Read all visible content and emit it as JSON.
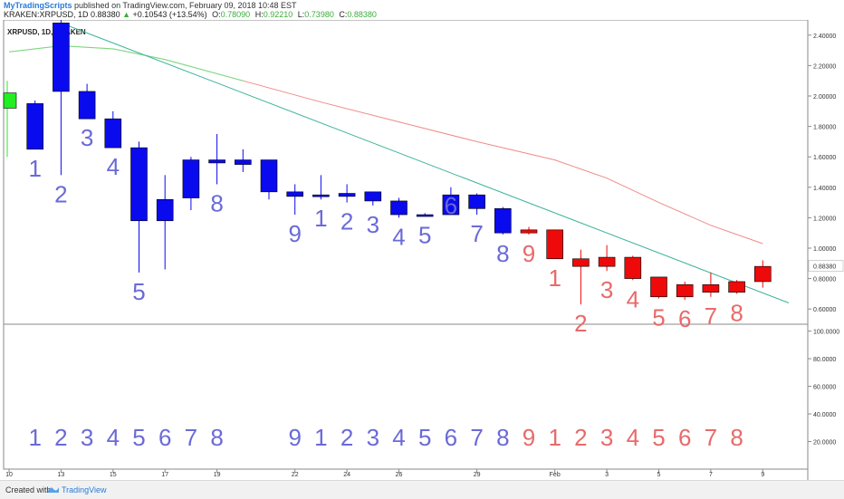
{
  "header": {
    "publisher": "MyTradingScripts",
    "published_text": "published on TradingView.com, February 09, 2018 10:48 EST",
    "symbol_line": "KRAKEN:XRPUSD, 1D",
    "last": "0.88380",
    "change_arrow": "▲",
    "change": "+0.10543 (+13.54%)",
    "o_label": "O:",
    "o_value": "0.78090",
    "h_label": "H:",
    "h_value": "0.92210",
    "l_label": "L:",
    "l_value": "0.73980",
    "c_label": "C:",
    "c_value": "0.88380"
  },
  "footer": {
    "created": "Created with",
    "brand": "TradingView",
    "logo_icon": "tradingview-logo-icon"
  },
  "colors": {
    "bull_setup": "#0a0aee",
    "bear_setup": "#ee0a0a",
    "first_bar": "#22ee22",
    "count_blue": "#6a6ad8",
    "count_red": "#e86a6a",
    "trendline": "#3cb39a",
    "ma_green": "#7ed67e",
    "ma_red": "#f08a8a"
  },
  "chart_data": {
    "type": "candlestick",
    "title": "XRPUSD, 1D, KRAKEN",
    "last_price_label": "0.88380",
    "y_ticks": [
      "2.40000",
      "2.20000",
      "2.00000",
      "1.80000",
      "1.60000",
      "1.40000",
      "1.20000",
      "1.00000",
      "0.88380",
      "0.80000",
      "0.60000"
    ],
    "y_tick_values": [
      2.4,
      2.2,
      2.0,
      1.8,
      1.6,
      1.4,
      1.2,
      1.0,
      0.8838,
      0.8,
      0.6
    ],
    "ylim": [
      0.5,
      2.5
    ],
    "x_ticks": [
      {
        "label": "10",
        "idx": 0
      },
      {
        "label": "13",
        "idx": 2
      },
      {
        "label": "15",
        "idx": 4
      },
      {
        "label": "17",
        "idx": 6
      },
      {
        "label": "19",
        "idx": 8
      },
      {
        "label": "22",
        "idx": 11
      },
      {
        "label": "24",
        "idx": 13
      },
      {
        "label": "26",
        "idx": 15
      },
      {
        "label": "29",
        "idx": 18
      },
      {
        "label": "Feb",
        "idx": 21
      },
      {
        "label": "3",
        "idx": 23
      },
      {
        "label": "5",
        "idx": 25
      },
      {
        "label": "7",
        "idx": 27
      },
      {
        "label": "9",
        "idx": 29
      }
    ],
    "candles": [
      {
        "o": 1.92,
        "h": 2.1,
        "l": 1.6,
        "c": 2.02,
        "color": "green"
      },
      {
        "o": 1.95,
        "h": 1.97,
        "l": 1.65,
        "c": 1.65,
        "color": "blue"
      },
      {
        "o": 2.03,
        "h": 2.52,
        "l": 1.48,
        "c": 2.48,
        "color": "blue"
      },
      {
        "o": 2.03,
        "h": 2.08,
        "l": 1.85,
        "c": 1.85,
        "color": "blue"
      },
      {
        "o": 1.85,
        "h": 1.9,
        "l": 1.66,
        "c": 1.66,
        "color": "blue"
      },
      {
        "o": 1.66,
        "h": 1.7,
        "l": 0.84,
        "c": 1.18,
        "color": "blue"
      },
      {
        "o": 1.18,
        "h": 1.48,
        "l": 0.86,
        "c": 1.32,
        "color": "blue"
      },
      {
        "o": 1.33,
        "h": 1.6,
        "l": 1.25,
        "c": 1.58,
        "color": "blue"
      },
      {
        "o": 1.56,
        "h": 1.75,
        "l": 1.42,
        "c": 1.58,
        "color": "blue"
      },
      {
        "o": 1.55,
        "h": 1.65,
        "l": 1.5,
        "c": 1.58,
        "color": "blue"
      },
      {
        "o": 1.58,
        "h": 1.58,
        "l": 1.32,
        "c": 1.37,
        "color": "blue"
      },
      {
        "o": 1.37,
        "h": 1.42,
        "l": 1.22,
        "c": 1.34,
        "color": "blue"
      },
      {
        "o": 1.35,
        "h": 1.48,
        "l": 1.32,
        "c": 1.35,
        "color": "blue"
      },
      {
        "o": 1.36,
        "h": 1.42,
        "l": 1.3,
        "c": 1.34,
        "color": "blue"
      },
      {
        "o": 1.37,
        "h": 1.37,
        "l": 1.28,
        "c": 1.31,
        "color": "blue"
      },
      {
        "o": 1.31,
        "h": 1.33,
        "l": 1.2,
        "c": 1.22,
        "color": "blue"
      },
      {
        "o": 1.22,
        "h": 1.23,
        "l": 1.21,
        "c": 1.22,
        "color": "blue"
      },
      {
        "o": 1.22,
        "h": 1.4,
        "l": 1.22,
        "c": 1.35,
        "color": "blue"
      },
      {
        "o": 1.35,
        "h": 1.36,
        "l": 1.22,
        "c": 1.26,
        "color": "blue"
      },
      {
        "o": 1.26,
        "h": 1.27,
        "l": 1.09,
        "c": 1.1,
        "color": "blue"
      },
      {
        "o": 1.12,
        "h": 1.14,
        "l": 1.09,
        "c": 1.1,
        "color": "red"
      },
      {
        "o": 1.12,
        "h": 1.12,
        "l": 0.93,
        "c": 0.93,
        "color": "red"
      },
      {
        "o": 0.93,
        "h": 0.99,
        "l": 0.63,
        "c": 0.88,
        "color": "red"
      },
      {
        "o": 0.88,
        "h": 1.02,
        "l": 0.85,
        "c": 0.94,
        "color": "red"
      },
      {
        "o": 0.94,
        "h": 0.95,
        "l": 0.79,
        "c": 0.8,
        "color": "red"
      },
      {
        "o": 0.81,
        "h": 0.81,
        "l": 0.67,
        "c": 0.68,
        "color": "red"
      },
      {
        "o": 0.68,
        "h": 0.78,
        "l": 0.66,
        "c": 0.76,
        "color": "red"
      },
      {
        "o": 0.76,
        "h": 0.84,
        "l": 0.68,
        "c": 0.71,
        "color": "red"
      },
      {
        "o": 0.71,
        "h": 0.79,
        "l": 0.7,
        "c": 0.78,
        "color": "red"
      },
      {
        "o": 0.78,
        "h": 0.92,
        "l": 0.74,
        "c": 0.88,
        "color": "red"
      }
    ],
    "price_counts": [
      {
        "idx": 1,
        "label": "1",
        "side": "below",
        "color": "blue"
      },
      {
        "idx": 2,
        "label": "2",
        "side": "below",
        "color": "blue"
      },
      {
        "idx": 3,
        "label": "3",
        "side": "below",
        "color": "blue"
      },
      {
        "idx": 4,
        "label": "4",
        "side": "below",
        "color": "blue"
      },
      {
        "idx": 5,
        "label": "5",
        "side": "below",
        "color": "blue"
      },
      {
        "idx": 8,
        "label": "8",
        "side": "below",
        "color": "blue"
      },
      {
        "idx": 11,
        "label": "9",
        "side": "below",
        "color": "blue"
      },
      {
        "idx": 12,
        "label": "1",
        "side": "below",
        "color": "blue"
      },
      {
        "idx": 13,
        "label": "2",
        "side": "below",
        "color": "blue"
      },
      {
        "idx": 14,
        "label": "3",
        "side": "below",
        "color": "blue"
      },
      {
        "idx": 15,
        "label": "4",
        "side": "below",
        "color": "blue"
      },
      {
        "idx": 16,
        "label": "5",
        "side": "below",
        "color": "blue"
      },
      {
        "idx": 17,
        "label": "6",
        "side": "on",
        "color": "blue"
      },
      {
        "idx": 18,
        "label": "7",
        "side": "below",
        "color": "blue"
      },
      {
        "idx": 19,
        "label": "8",
        "side": "below",
        "color": "blue"
      },
      {
        "idx": 20,
        "label": "9",
        "side": "below",
        "color": "red"
      },
      {
        "idx": 21,
        "label": "1",
        "side": "below",
        "color": "red"
      },
      {
        "idx": 22,
        "label": "2",
        "side": "below",
        "color": "red"
      },
      {
        "idx": 23,
        "label": "3",
        "side": "below",
        "color": "red"
      },
      {
        "idx": 24,
        "label": "4",
        "side": "below",
        "color": "red"
      },
      {
        "idx": 25,
        "label": "5",
        "side": "below",
        "color": "red"
      },
      {
        "idx": 26,
        "label": "6",
        "side": "below",
        "color": "red"
      },
      {
        "idx": 27,
        "label": "7",
        "side": "below",
        "color": "red"
      },
      {
        "idx": 28,
        "label": "8",
        "side": "below",
        "color": "red"
      }
    ],
    "lower_counts": [
      {
        "idx": 1,
        "label": "1",
        "color": "blue"
      },
      {
        "idx": 2,
        "label": "2",
        "color": "blue"
      },
      {
        "idx": 3,
        "label": "3",
        "color": "blue"
      },
      {
        "idx": 4,
        "label": "4",
        "color": "blue"
      },
      {
        "idx": 5,
        "label": "5",
        "color": "blue"
      },
      {
        "idx": 6,
        "label": "6",
        "color": "blue"
      },
      {
        "idx": 7,
        "label": "7",
        "color": "blue"
      },
      {
        "idx": 8,
        "label": "8",
        "color": "blue"
      },
      {
        "idx": 11,
        "label": "9",
        "color": "blue"
      },
      {
        "idx": 12,
        "label": "1",
        "color": "blue"
      },
      {
        "idx": 13,
        "label": "2",
        "color": "blue"
      },
      {
        "idx": 14,
        "label": "3",
        "color": "blue"
      },
      {
        "idx": 15,
        "label": "4",
        "color": "blue"
      },
      {
        "idx": 16,
        "label": "5",
        "color": "blue"
      },
      {
        "idx": 17,
        "label": "6",
        "color": "blue"
      },
      {
        "idx": 18,
        "label": "7",
        "color": "blue"
      },
      {
        "idx": 19,
        "label": "8",
        "color": "blue"
      },
      {
        "idx": 20,
        "label": "9",
        "color": "red"
      },
      {
        "idx": 21,
        "label": "1",
        "color": "red"
      },
      {
        "idx": 22,
        "label": "2",
        "color": "red"
      },
      {
        "idx": 23,
        "label": "3",
        "color": "red"
      },
      {
        "idx": 24,
        "label": "4",
        "color": "red"
      },
      {
        "idx": 25,
        "label": "5",
        "color": "red"
      },
      {
        "idx": 26,
        "label": "6",
        "color": "red"
      },
      {
        "idx": 27,
        "label": "7",
        "color": "red"
      },
      {
        "idx": 28,
        "label": "8",
        "color": "red"
      }
    ],
    "trendline": {
      "start": {
        "idx": 2,
        "price": 2.48
      },
      "end": {
        "idx": 30,
        "price": 0.64
      }
    },
    "ma_line": [
      {
        "idx": 0,
        "price": 2.29
      },
      {
        "idx": 2,
        "price": 2.33
      },
      {
        "idx": 4,
        "price": 2.31
      },
      {
        "idx": 6,
        "price": 2.24
      },
      {
        "idx": 9,
        "price": 2.1
      },
      {
        "idx": 12,
        "price": 1.96
      },
      {
        "idx": 15,
        "price": 1.83
      },
      {
        "idx": 18,
        "price": 1.7
      },
      {
        "idx": 21,
        "price": 1.58
      },
      {
        "idx": 23,
        "price": 1.46
      },
      {
        "idx": 25,
        "price": 1.3
      },
      {
        "idx": 27,
        "price": 1.15
      },
      {
        "idx": 29,
        "price": 1.03
      }
    ],
    "lower_pane": {
      "y_ticks": [
        "100.0000",
        "80.0000",
        "60.0000",
        "40.0000",
        "20.0000"
      ],
      "y_tick_values": [
        100,
        80,
        60,
        40,
        20
      ],
      "ylim": [
        0,
        105
      ]
    }
  }
}
